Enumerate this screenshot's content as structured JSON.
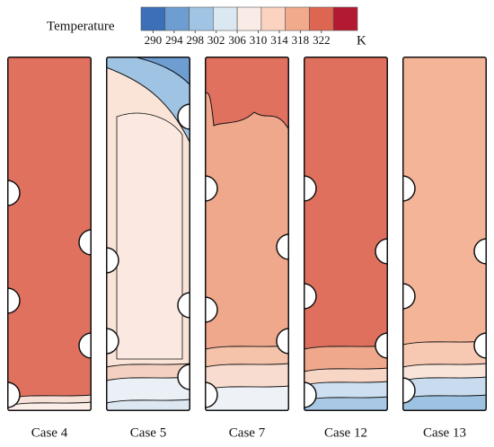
{
  "colorbar": {
    "title": "Temperature",
    "ticks": [
      290,
      294,
      298,
      302,
      306,
      310,
      314,
      318,
      322
    ],
    "unit": "K",
    "colors": [
      "#3b70b9",
      "#6d9dd1",
      "#a0c4e3",
      "#dbe8f2",
      "#f9ebe5",
      "#fbd3c0",
      "#f2aa8c",
      "#dc6652",
      "#b31a31"
    ]
  },
  "panels": [
    {
      "label": "Case 4"
    },
    {
      "label": "Case 5"
    },
    {
      "label": "Case 7"
    },
    {
      "label": "Case 12"
    },
    {
      "label": "Case 13"
    }
  ]
}
